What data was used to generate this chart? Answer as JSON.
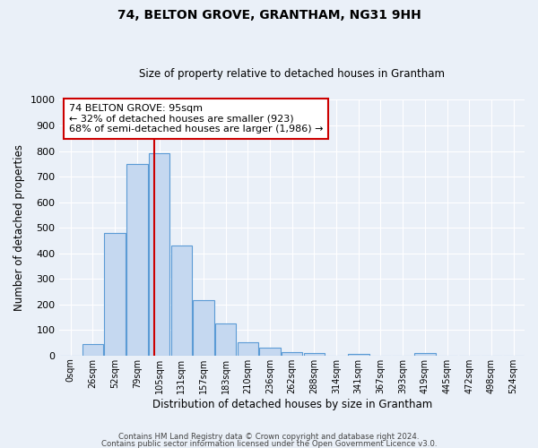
{
  "title": "74, BELTON GROVE, GRANTHAM, NG31 9HH",
  "subtitle": "Size of property relative to detached houses in Grantham",
  "xlabel": "Distribution of detached houses by size in Grantham",
  "ylabel": "Number of detached properties",
  "bar_labels": [
    "0sqm",
    "26sqm",
    "52sqm",
    "79sqm",
    "105sqm",
    "131sqm",
    "157sqm",
    "183sqm",
    "210sqm",
    "236sqm",
    "262sqm",
    "288sqm",
    "314sqm",
    "341sqm",
    "367sqm",
    "393sqm",
    "419sqm",
    "445sqm",
    "472sqm",
    "498sqm",
    "524sqm"
  ],
  "bar_values": [
    0,
    45,
    480,
    750,
    790,
    430,
    218,
    127,
    52,
    30,
    15,
    10,
    0,
    8,
    0,
    0,
    10,
    0,
    0,
    0,
    0
  ],
  "bar_color": "#c5d8f0",
  "bar_edge_color": "#5b9bd5",
  "ylim": [
    0,
    1000
  ],
  "yticks": [
    0,
    100,
    200,
    300,
    400,
    500,
    600,
    700,
    800,
    900,
    1000
  ],
  "vline_x": 3.77,
  "vline_color": "#cc0000",
  "annotation_line1": "74 BELTON GROVE: 95sqm",
  "annotation_line2": "← 32% of detached houses are smaller (923)",
  "annotation_line3": "68% of semi-detached houses are larger (1,986) →",
  "annotation_box_color": "#ffffff",
  "annotation_box_edge_color": "#cc0000",
  "bg_color": "#eaf0f8",
  "plot_bg_color": "#eaf0f8",
  "grid_color": "#ffffff",
  "footer_line1": "Contains HM Land Registry data © Crown copyright and database right 2024.",
  "footer_line2": "Contains public sector information licensed under the Open Government Licence v3.0."
}
